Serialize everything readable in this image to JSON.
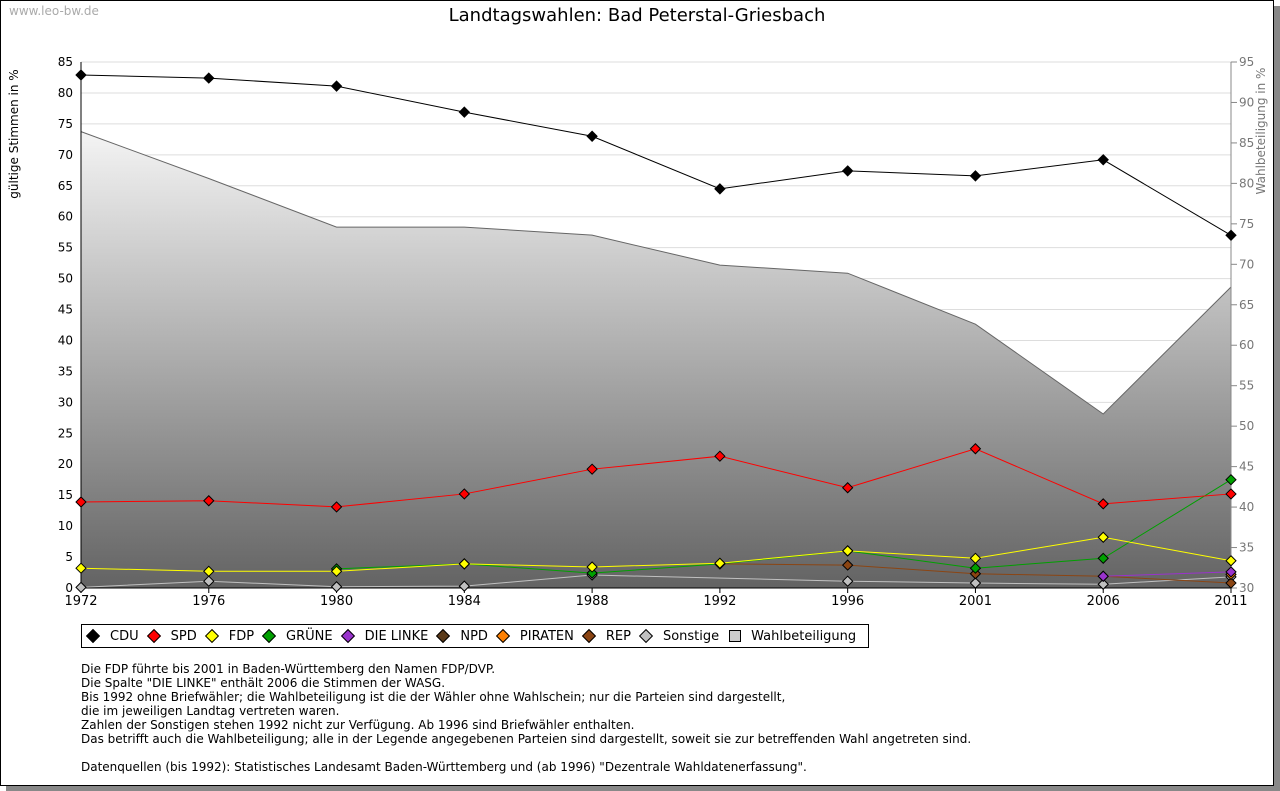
{
  "watermark": "www.leo-bw.de",
  "chart_data": {
    "type": "line",
    "title": "Landtagswahlen: Bad Peterstal-Griesbach",
    "ylabel": "gültige Stimmen in %",
    "y2label": "Wahlbeteiligung in %",
    "ylim": [
      0,
      85
    ],
    "y2lim": [
      30,
      95
    ],
    "yticks": [
      0,
      5,
      10,
      15,
      20,
      25,
      30,
      35,
      40,
      45,
      50,
      55,
      60,
      65,
      70,
      75,
      80,
      85
    ],
    "y2ticks": [
      30,
      35,
      40,
      45,
      50,
      55,
      60,
      65,
      70,
      75,
      80,
      85,
      90,
      95
    ],
    "categories": [
      "1972",
      "1976",
      "1980",
      "1984",
      "1988",
      "1992",
      "1996",
      "2001",
      "2006",
      "2011"
    ],
    "series": [
      {
        "name": "Wahlbeteiligung",
        "axis": "right",
        "type": "area",
        "values": [
          86.4,
          80.6,
          74.6,
          74.6,
          73.6,
          69.9,
          68.9,
          62.6,
          51.5,
          67.2
        ]
      },
      {
        "name": "Sonstige",
        "color": "#c0c0c0",
        "values": [
          0.1,
          1.1,
          0.2,
          0.3,
          2.1,
          null,
          1.1,
          0.8,
          0.6,
          1.8
        ]
      },
      {
        "name": "REP",
        "color": "#8b4513",
        "values": [
          null,
          null,
          null,
          null,
          null,
          3.9,
          3.7,
          2.3,
          1.9,
          0.8
        ]
      },
      {
        "name": "NPD",
        "color": "#5a3a1a",
        "values": [
          null,
          null,
          null,
          null,
          null,
          null,
          null,
          null,
          null,
          null
        ]
      },
      {
        "name": "PIRATEN",
        "color": "#ff8000",
        "values": [
          null,
          null,
          null,
          null,
          null,
          null,
          null,
          null,
          null,
          2.2
        ]
      },
      {
        "name": "DIE LINKE",
        "color": "#9933cc",
        "values": [
          null,
          null,
          null,
          null,
          null,
          null,
          null,
          null,
          1.9,
          2.6
        ]
      },
      {
        "name": "GRÜNE",
        "color": "#00a000",
        "values": [
          null,
          null,
          3.1,
          3.9,
          2.4,
          3.9,
          6.0,
          3.2,
          4.8,
          17.5
        ]
      },
      {
        "name": "FDP",
        "color": "#ffff00",
        "values": [
          3.2,
          2.7,
          2.7,
          3.9,
          3.4,
          4.0,
          6.0,
          4.8,
          8.2,
          4.4
        ]
      },
      {
        "name": "SPD",
        "color": "#ff0000",
        "values": [
          13.9,
          14.1,
          13.1,
          15.2,
          19.2,
          21.3,
          16.2,
          22.5,
          13.6,
          15.2
        ]
      },
      {
        "name": "CDU",
        "color": "#000000",
        "values": [
          82.9,
          82.4,
          81.1,
          76.9,
          73.0,
          64.5,
          67.4,
          66.6,
          69.2,
          57.0
        ]
      }
    ],
    "legend": [
      {
        "name": "CDU",
        "color": "#000000"
      },
      {
        "name": "SPD",
        "color": "#ff0000"
      },
      {
        "name": "FDP",
        "color": "#ffff00"
      },
      {
        "name": "GRÜNE",
        "color": "#00a000"
      },
      {
        "name": "DIE LINKE",
        "color": "#9933cc"
      },
      {
        "name": "NPD",
        "color": "#5a3a1a"
      },
      {
        "name": "PIRATEN",
        "color": "#ff8000"
      },
      {
        "name": "REP",
        "color": "#8b4513"
      },
      {
        "name": "Sonstige",
        "color": "#c0c0c0"
      },
      {
        "name": "Wahlbeteiligung",
        "color": "#cccccc"
      }
    ]
  },
  "notes": [
    "Die FDP führte bis 2001 in Baden-Württemberg den Namen FDP/DVP.",
    "Die Spalte \"DIE LINKE\" enthält 2006 die Stimmen der WASG.",
    "Bis 1992 ohne Briefwähler; die Wahlbeteiligung ist die der Wähler ohne Wahlschein; nur die Parteien sind dargestellt,",
    "die im jeweiligen Landtag vertreten waren.",
    "Zahlen der Sonstigen stehen 1992 nicht zur Verfügung. Ab 1996 sind Briefwähler enthalten.",
    "Das betrifft auch die Wahlbeteiligung; alle in der Legende angegebenen Parteien sind dargestellt, soweit sie zur betreffenden Wahl angetreten sind.",
    "",
    "Datenquellen (bis 1992): Statistisches Landesamt Baden-Württemberg und (ab 1996) \"Dezentrale Wahldatenerfassung\"."
  ]
}
